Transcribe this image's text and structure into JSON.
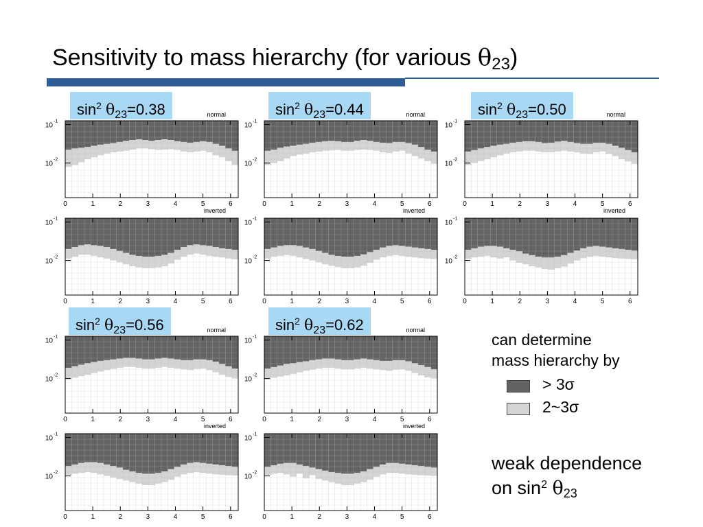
{
  "title": {
    "text": "Sensitivity to mass hierarchy (for various ",
    "theta": "θ",
    "sub": "23",
    "close": ")"
  },
  "panels": [
    {
      "label": {
        "prefix": "sin",
        "sup": "2",
        "theta": "θ",
        "sub": "23",
        "value": "=0.38"
      }
    },
    {
      "label": {
        "prefix": "sin",
        "sup": "2",
        "theta": "θ",
        "sub": "23",
        "value": "=0.44"
      }
    },
    {
      "label": {
        "prefix": "sin",
        "sup": "2",
        "theta": "θ",
        "sub": "23",
        "value": "=0.50"
      }
    },
    {
      "label": {
        "prefix": "sin",
        "sup": "2",
        "theta": "θ",
        "sub": "23",
        "value": "=0.56"
      }
    },
    {
      "label": {
        "prefix": "sin",
        "sup": "2",
        "theta": "θ",
        "sub": "23",
        "value": "=0.62"
      }
    }
  ],
  "legend": {
    "heading_line1": "can determine",
    "heading_line2": "mass hierarchy by",
    "dark_label": "> 3σ",
    "light_label": "2~3σ",
    "dark_color": "#636363",
    "light_color": "#d4d4d4"
  },
  "note": {
    "line1": "weak dependence",
    "line2_prefix": "on sin",
    "sup": "2",
    "theta": "θ",
    "sub": "23"
  },
  "chart_data": {
    "type": "heatmap",
    "description_scope": "10 sensitivity maps (5 sin^2 theta23 values x normal/inverted hierarchy); dark = >3 sigma, light = 2~3 sigma, white = not determinable",
    "x_ticks": [
      "0",
      "1",
      "2",
      "3",
      "4",
      "5",
      "6"
    ],
    "xlim": [
      0,
      6.28
    ],
    "y_ticks": [
      "10",
      "10"
    ],
    "y_tick_exponents": [
      "-1",
      "-2"
    ],
    "ylim_log10": [
      -2.9,
      -0.9
    ],
    "hierarchy_labels": [
      "normal",
      "inverted"
    ],
    "colors": {
      "strong": "#636363",
      "weak": "#d4d4d4",
      "none": "#ffffff"
    },
    "maps": [
      {
        "sin2_theta23": 0.38,
        "hierarchy": "normal",
        "strong_boundary_log10": [
          -1.65,
          -1.62,
          -1.6,
          -1.58,
          -1.55,
          -1.52,
          -1.5,
          -1.48,
          -1.45,
          -1.42,
          -1.4,
          -1.38,
          -1.4,
          -1.42,
          -1.4,
          -1.38,
          -1.4,
          -1.43,
          -1.45,
          -1.47,
          -1.45,
          -1.43,
          -1.45,
          -1.5,
          -1.55,
          -1.62,
          -1.68
        ],
        "weak_boundary_log10": [
          -2.1,
          -2.05,
          -1.98,
          -1.9,
          -1.85,
          -1.8,
          -1.75,
          -1.72,
          -1.7,
          -1.68,
          -1.65,
          -1.62,
          -1.62,
          -1.64,
          -1.66,
          -1.65,
          -1.64,
          -1.66,
          -1.7,
          -1.72,
          -1.7,
          -1.68,
          -1.72,
          -1.8,
          -1.85,
          -1.95,
          -2.05
        ]
      },
      {
        "sin2_theta23": 0.38,
        "hierarchy": "inverted",
        "strong_boundary_log10": [
          -1.7,
          -1.65,
          -1.6,
          -1.58,
          -1.6,
          -1.62,
          -1.65,
          -1.7,
          -1.75,
          -1.8,
          -1.85,
          -1.88,
          -1.9,
          -1.9,
          -1.88,
          -1.85,
          -1.8,
          -1.72,
          -1.65,
          -1.6,
          -1.58,
          -1.6,
          -1.62,
          -1.65,
          -1.68,
          -1.7,
          -1.72
        ],
        "weak_boundary_log10": [
          -1.95,
          -1.9,
          -1.85,
          -1.85,
          -1.88,
          -1.92,
          -1.95,
          -2.0,
          -2.05,
          -2.1,
          -2.15,
          -2.18,
          -2.2,
          -2.2,
          -2.18,
          -2.15,
          -2.08,
          -1.98,
          -1.9,
          -1.85,
          -1.82,
          -1.85,
          -1.88,
          -1.9,
          -1.92,
          -1.95,
          -1.97
        ]
      },
      {
        "sin2_theta23": 0.44,
        "hierarchy": "normal",
        "strong_boundary_log10": [
          -1.68,
          -1.65,
          -1.6,
          -1.57,
          -1.55,
          -1.52,
          -1.5,
          -1.47,
          -1.45,
          -1.43,
          -1.42,
          -1.43,
          -1.45,
          -1.45,
          -1.42,
          -1.4,
          -1.42,
          -1.45,
          -1.47,
          -1.48,
          -1.45,
          -1.45,
          -1.48,
          -1.52,
          -1.58,
          -1.65,
          -1.7
        ],
        "weak_boundary_log10": [
          -2.05,
          -2.0,
          -1.95,
          -1.88,
          -1.82,
          -1.78,
          -1.75,
          -1.72,
          -1.7,
          -1.68,
          -1.67,
          -1.66,
          -1.68,
          -1.68,
          -1.66,
          -1.65,
          -1.66,
          -1.68,
          -1.72,
          -1.74,
          -1.7,
          -1.68,
          -1.75,
          -1.82,
          -1.88,
          -1.95,
          -2.02
        ]
      },
      {
        "sin2_theta23": 0.44,
        "hierarchy": "inverted",
        "strong_boundary_log10": [
          -1.7,
          -1.66,
          -1.62,
          -1.6,
          -1.6,
          -1.62,
          -1.66,
          -1.7,
          -1.75,
          -1.8,
          -1.85,
          -1.88,
          -1.9,
          -1.9,
          -1.88,
          -1.84,
          -1.78,
          -1.72,
          -1.66,
          -1.62,
          -1.6,
          -1.62,
          -1.64,
          -1.66,
          -1.68,
          -1.7,
          -1.72
        ],
        "weak_boundary_log10": [
          -1.95,
          -1.9,
          -1.88,
          -1.86,
          -1.88,
          -1.92,
          -1.96,
          -2.0,
          -2.05,
          -2.1,
          -2.14,
          -2.17,
          -2.2,
          -2.2,
          -2.18,
          -2.14,
          -2.06,
          -1.98,
          -1.92,
          -1.88,
          -1.86,
          -1.88,
          -1.9,
          -1.92,
          -1.94,
          -1.95,
          -1.96
        ]
      },
      {
        "sin2_theta23": 0.5,
        "hierarchy": "normal",
        "strong_boundary_log10": [
          -1.7,
          -1.66,
          -1.62,
          -1.58,
          -1.55,
          -1.52,
          -1.5,
          -1.47,
          -1.45,
          -1.43,
          -1.43,
          -1.45,
          -1.48,
          -1.47,
          -1.44,
          -1.42,
          -1.45,
          -1.48,
          -1.5,
          -1.5,
          -1.47,
          -1.47,
          -1.5,
          -1.55,
          -1.6,
          -1.66,
          -1.72
        ],
        "weak_boundary_log10": [
          -2.05,
          -2.0,
          -1.95,
          -1.9,
          -1.85,
          -1.8,
          -1.75,
          -1.72,
          -1.7,
          -1.68,
          -1.68,
          -1.7,
          -1.72,
          -1.72,
          -1.7,
          -1.68,
          -1.7,
          -1.72,
          -1.75,
          -1.76,
          -1.72,
          -1.7,
          -1.76,
          -1.82,
          -1.9,
          -1.96,
          -2.02
        ]
      },
      {
        "sin2_theta23": 0.5,
        "hierarchy": "inverted",
        "strong_boundary_log10": [
          -1.72,
          -1.68,
          -1.64,
          -1.62,
          -1.62,
          -1.64,
          -1.68,
          -1.72,
          -1.76,
          -1.82,
          -1.86,
          -1.9,
          -1.92,
          -1.92,
          -1.9,
          -1.86,
          -1.8,
          -1.74,
          -1.68,
          -1.64,
          -1.62,
          -1.64,
          -1.66,
          -1.68,
          -1.7,
          -1.72,
          -1.74
        ],
        "weak_boundary_log10": [
          -1.96,
          -1.92,
          -1.9,
          -1.88,
          -1.92,
          -1.95,
          -1.92,
          -2.0,
          -2.06,
          -2.1,
          -2.15,
          -2.18,
          -2.22,
          -2.24,
          -2.2,
          -2.16,
          -2.08,
          -2.0,
          -1.94,
          -1.9,
          -1.88,
          -1.9,
          -1.92,
          -1.94,
          -1.95,
          -1.96,
          -1.97
        ]
      },
      {
        "sin2_theta23": 0.56,
        "hierarchy": "normal",
        "strong_boundary_log10": [
          -1.72,
          -1.68,
          -1.64,
          -1.6,
          -1.57,
          -1.54,
          -1.52,
          -1.5,
          -1.48,
          -1.46,
          -1.46,
          -1.48,
          -1.5,
          -1.5,
          -1.48,
          -1.46,
          -1.48,
          -1.5,
          -1.52,
          -1.52,
          -1.5,
          -1.5,
          -1.52,
          -1.56,
          -1.62,
          -1.68,
          -1.74
        ],
        "weak_boundary_log10": [
          -2.02,
          -1.98,
          -1.94,
          -1.9,
          -1.86,
          -1.82,
          -1.78,
          -1.75,
          -1.72,
          -1.7,
          -1.7,
          -1.72,
          -1.74,
          -1.74,
          -1.72,
          -1.7,
          -1.72,
          -1.74,
          -1.76,
          -1.78,
          -1.75,
          -1.74,
          -1.78,
          -1.84,
          -1.9,
          -1.96,
          -2.0
        ]
      },
      {
        "sin2_theta23": 0.56,
        "hierarchy": "inverted",
        "strong_boundary_log10": [
          -1.74,
          -1.7,
          -1.66,
          -1.64,
          -1.64,
          -1.66,
          -1.7,
          -1.74,
          -1.78,
          -1.84,
          -1.88,
          -1.92,
          -1.94,
          -1.94,
          -1.92,
          -1.88,
          -1.82,
          -1.76,
          -1.7,
          -1.66,
          -1.64,
          -1.66,
          -1.68,
          -1.7,
          -1.72,
          -1.74,
          -1.76
        ],
        "weak_boundary_log10": [
          -1.98,
          -1.94,
          -1.92,
          -1.9,
          -1.92,
          -1.96,
          -2.0,
          -2.04,
          -2.08,
          -2.12,
          -2.16,
          -2.2,
          -2.24,
          -2.24,
          -2.2,
          -2.16,
          -2.1,
          -2.02,
          -1.96,
          -1.92,
          -1.9,
          -1.92,
          -1.94,
          -1.96,
          -1.97,
          -1.98,
          -1.99
        ]
      },
      {
        "sin2_theta23": 0.62,
        "hierarchy": "normal",
        "strong_boundary_log10": [
          -1.74,
          -1.7,
          -1.66,
          -1.62,
          -1.6,
          -1.57,
          -1.55,
          -1.52,
          -1.5,
          -1.48,
          -1.48,
          -1.5,
          -1.52,
          -1.52,
          -1.5,
          -1.48,
          -1.5,
          -1.52,
          -1.54,
          -1.54,
          -1.52,
          -1.52,
          -1.55,
          -1.6,
          -1.65,
          -1.7,
          -1.76
        ],
        "weak_boundary_log10": [
          -2.02,
          -1.98,
          -1.95,
          -1.92,
          -1.88,
          -1.84,
          -1.8,
          -1.77,
          -1.74,
          -1.72,
          -1.72,
          -1.74,
          -1.76,
          -1.76,
          -1.74,
          -1.72,
          -1.74,
          -1.76,
          -1.78,
          -1.8,
          -1.77,
          -1.76,
          -1.8,
          -1.86,
          -1.92,
          -1.97,
          -2.0
        ]
      },
      {
        "sin2_theta23": 0.62,
        "hierarchy": "inverted",
        "strong_boundary_log10": [
          -1.76,
          -1.72,
          -1.68,
          -1.66,
          -1.66,
          -1.7,
          -1.74,
          -1.78,
          -1.82,
          -1.86,
          -1.9,
          -1.92,
          -1.94,
          -1.94,
          -1.92,
          -1.88,
          -1.82,
          -1.76,
          -1.7,
          -1.66,
          -1.66,
          -1.68,
          -1.7,
          -1.72,
          -1.74,
          -1.76,
          -1.78
        ],
        "weak_boundary_log10": [
          -1.98,
          -1.94,
          -1.92,
          -1.96,
          -2.02,
          -1.94,
          -2.06,
          -1.98,
          -2.08,
          -2.12,
          -2.16,
          -2.2,
          -2.24,
          -2.24,
          -2.2,
          -2.16,
          -2.1,
          -2.02,
          -1.96,
          -1.92,
          -1.92,
          -1.94,
          -1.96,
          -1.97,
          -1.98,
          -1.99,
          -2.0
        ]
      }
    ]
  }
}
